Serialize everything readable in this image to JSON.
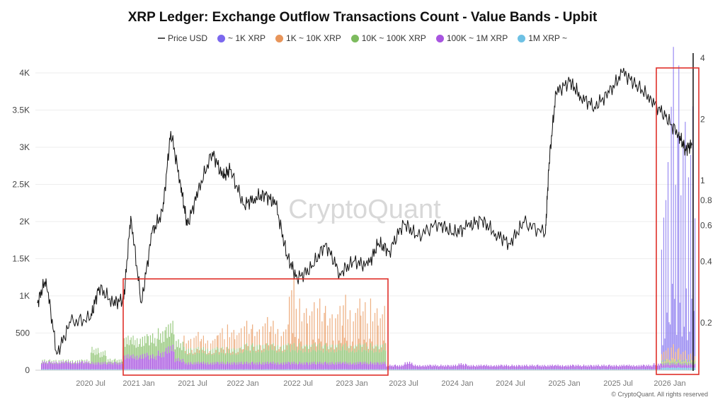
{
  "chart_data": {
    "type": "bar",
    "title": "XRP Ledger: Exchange Outflow Transactions Count - Value Bands - Upbit",
    "legend_position": "top",
    "grid": true,
    "watermark": "CryptoQuant",
    "copyright": "© CryptoQuant. All rights reserved",
    "x_ticks": [
      "2020 Jul",
      "2021 Jan",
      "2021 Jul",
      "2022 Jan",
      "2022 Jul",
      "2023 Jan",
      "2023 Jul",
      "2024 Jan",
      "2024 Jul",
      "2025 Jan",
      "2025 Jul",
      "2026 Jan"
    ],
    "y_left": {
      "ticks": [
        "0",
        "500",
        "1K",
        "1.5K",
        "2K",
        "2.5K",
        "3K",
        "3.5K",
        "4K"
      ],
      "ylim": [
        0,
        4200
      ]
    },
    "y_right": {
      "scale": "log",
      "ticks": [
        "0.2",
        "0.4",
        "0.6",
        "0.8",
        "1",
        "2",
        "4"
      ],
      "ylim": [
        0.12,
        4.4
      ]
    },
    "months_start": "2020-01",
    "stacked_series": [
      {
        "name": "~ 1K XRP",
        "color": "#7b68ee",
        "values": [
          0,
          0,
          0,
          0,
          0,
          0,
          0,
          0,
          0,
          0,
          0,
          0,
          0,
          0,
          0,
          0,
          0,
          0,
          0,
          0,
          0,
          0,
          0,
          0,
          0,
          0,
          0,
          0,
          0,
          0,
          0,
          0,
          0,
          0,
          0,
          0,
          0,
          0,
          0,
          0,
          0,
          0,
          0,
          0,
          0,
          0,
          0,
          0,
          0,
          0,
          0,
          0,
          0,
          0,
          0,
          0,
          0,
          0,
          0,
          0,
          0,
          0,
          0,
          0,
          0,
          0,
          0,
          0,
          0,
          0,
          0,
          2500,
          4000,
          3800,
          3300
        ]
      },
      {
        "name": "1K ~ 10K XRP",
        "color": "#e8955a",
        "values": [
          0,
          0,
          0,
          0,
          0,
          0,
          0,
          0,
          0,
          0,
          0,
          0,
          0,
          0,
          0,
          0,
          0,
          150,
          200,
          150,
          150,
          250,
          300,
          250,
          300,
          250,
          350,
          300,
          250,
          900,
          600,
          550,
          600,
          500,
          500,
          650,
          600,
          550,
          600,
          500,
          0,
          0,
          0,
          0,
          0,
          0,
          0,
          0,
          0,
          0,
          0,
          0,
          0,
          0,
          0,
          0,
          0,
          0,
          0,
          0,
          0,
          0,
          0,
          0,
          0,
          0,
          0,
          0,
          0,
          0,
          0,
          150,
          200,
          150,
          100
        ]
      },
      {
        "name": "10K ~ 100K XRP",
        "color": "#7dbb5e",
        "values": [
          20,
          20,
          20,
          20,
          20,
          20,
          200,
          150,
          40,
          40,
          250,
          250,
          250,
          280,
          300,
          320,
          250,
          200,
          200,
          200,
          200,
          200,
          200,
          200,
          250,
          250,
          250,
          250,
          250,
          250,
          250,
          250,
          250,
          250,
          250,
          250,
          250,
          250,
          250,
          250,
          0,
          0,
          0,
          0,
          0,
          0,
          0,
          0,
          0,
          0,
          0,
          0,
          0,
          0,
          0,
          0,
          0,
          0,
          0,
          0,
          0,
          0,
          0,
          0,
          0,
          0,
          0,
          0,
          0,
          0,
          0,
          50,
          50,
          50,
          50
        ]
      },
      {
        "name": "100K ~ 1M XRP",
        "color": "#a855e0",
        "values": [
          110,
          110,
          110,
          110,
          110,
          110,
          100,
          100,
          100,
          100,
          200,
          200,
          220,
          200,
          250,
          330,
          150,
          100,
          100,
          100,
          100,
          100,
          100,
          100,
          100,
          100,
          100,
          100,
          100,
          100,
          100,
          100,
          100,
          100,
          100,
          100,
          100,
          100,
          100,
          100,
          60,
          60,
          100,
          60,
          60,
          60,
          60,
          60,
          80,
          60,
          60,
          60,
          60,
          60,
          60,
          60,
          60,
          60,
          60,
          60,
          60,
          60,
          60,
          60,
          60,
          60,
          60,
          60,
          60,
          60,
          80,
          60,
          60,
          60,
          60
        ]
      },
      {
        "name": "1M XRP ~",
        "color": "#6ec1e4",
        "values": [
          15,
          15,
          15,
          15,
          15,
          15,
          15,
          15,
          15,
          15,
          15,
          15,
          15,
          15,
          15,
          15,
          15,
          15,
          15,
          15,
          15,
          15,
          15,
          15,
          15,
          15,
          15,
          15,
          15,
          15,
          15,
          15,
          15,
          15,
          15,
          15,
          15,
          15,
          15,
          15,
          15,
          15,
          15,
          15,
          15,
          15,
          15,
          15,
          15,
          15,
          15,
          15,
          15,
          15,
          15,
          15,
          15,
          15,
          15,
          15,
          15,
          15,
          15,
          15,
          15,
          15,
          15,
          15,
          15,
          15,
          15,
          40,
          40,
          40,
          40
        ]
      }
    ],
    "price_series": {
      "name": "Price USD",
      "color": "#111111",
      "axis": "right",
      "points": [
        [
          "2019-12-18",
          0.25
        ],
        [
          "2020-01-19",
          0.33
        ],
        [
          "2020-02-28",
          0.14
        ],
        [
          "2020-04-18",
          0.2
        ],
        [
          "2020-07-01",
          0.21
        ],
        [
          "2020-08-02",
          0.3
        ],
        [
          "2020-09-24",
          0.25
        ],
        [
          "2020-11-05",
          0.26
        ],
        [
          "2020-12-01",
          0.67
        ],
        [
          "2021-01-10",
          0.25
        ],
        [
          "2021-02-15",
          0.55
        ],
        [
          "2021-03-21",
          0.7
        ],
        [
          "2021-04-18",
          1.75
        ],
        [
          "2021-05-21",
          0.96
        ],
        [
          "2021-06-13",
          0.6
        ],
        [
          "2021-07-21",
          0.89
        ],
        [
          "2021-09-12",
          1.38
        ],
        [
          "2021-10-19",
          1.04
        ],
        [
          "2021-11-15",
          1.13
        ],
        [
          "2022-01-05",
          0.76
        ],
        [
          "2022-02-09",
          0.82
        ],
        [
          "2022-03-15",
          0.85
        ],
        [
          "2022-04-19",
          0.76
        ],
        [
          "2022-05-24",
          0.43
        ],
        [
          "2022-06-28",
          0.33
        ],
        [
          "2022-08-15",
          0.37
        ],
        [
          "2022-10-03",
          0.49
        ],
        [
          "2022-11-20",
          0.35
        ],
        [
          "2023-01-07",
          0.4
        ],
        [
          "2023-02-27",
          0.38
        ],
        [
          "2023-04-03",
          0.49
        ],
        [
          "2023-05-12",
          0.45
        ],
        [
          "2023-07-01",
          0.62
        ],
        [
          "2023-08-18",
          0.53
        ],
        [
          "2023-10-28",
          0.62
        ],
        [
          "2023-12-16",
          0.55
        ],
        [
          "2024-02-04",
          0.59
        ],
        [
          "2024-03-22",
          0.64
        ],
        [
          "2024-05-10",
          0.55
        ],
        [
          "2024-06-28",
          0.49
        ],
        [
          "2024-08-16",
          0.62
        ],
        [
          "2024-10-28",
          0.55
        ],
        [
          "2024-11-10",
          1.22
        ],
        [
          "2024-12-03",
          2.7
        ],
        [
          "2025-01-19",
          3.07
        ],
        [
          "2025-02-25",
          2.6
        ],
        [
          "2025-04-12",
          2.3
        ],
        [
          "2025-06-01",
          2.7
        ],
        [
          "2025-07-17",
          3.4
        ],
        [
          "2025-09-05",
          2.95
        ],
        [
          "2025-10-27",
          2.5
        ],
        [
          "2025-12-16",
          2.06
        ],
        [
          "2026-02-01",
          1.68
        ],
        [
          "2026-02-25",
          1.43
        ],
        [
          "2026-03-18",
          1.49
        ]
      ]
    },
    "annotations": [
      "red-box-2021-2023-activity",
      "red-box-2026-activity"
    ]
  }
}
